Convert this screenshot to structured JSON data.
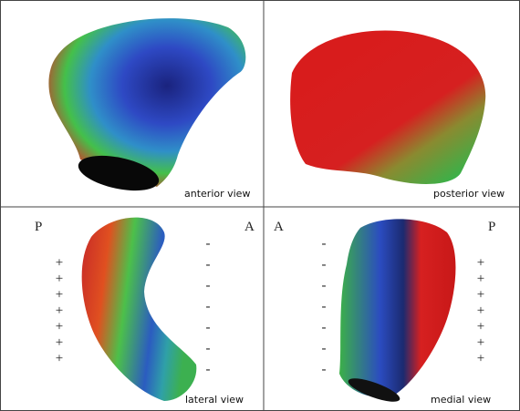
{
  "panels": [
    {
      "label": "anterior view"
    },
    {
      "label": "posterior view"
    },
    {
      "label": "lateral view",
      "left_letter": "P",
      "right_letter": "A",
      "left_signs": [
        "+",
        "+",
        "+",
        "+",
        "+",
        "+",
        "+"
      ],
      "right_signs": [
        "-",
        "-",
        "-",
        "-",
        "-",
        "-",
        "-"
      ]
    },
    {
      "label": "medial view",
      "left_letter": "A",
      "right_letter": "P",
      "left_signs": [
        "-",
        "-",
        "-",
        "-",
        "-",
        "-",
        "-"
      ],
      "right_signs": [
        "+",
        "+",
        "+",
        "+",
        "+",
        "+",
        "+"
      ]
    }
  ]
}
